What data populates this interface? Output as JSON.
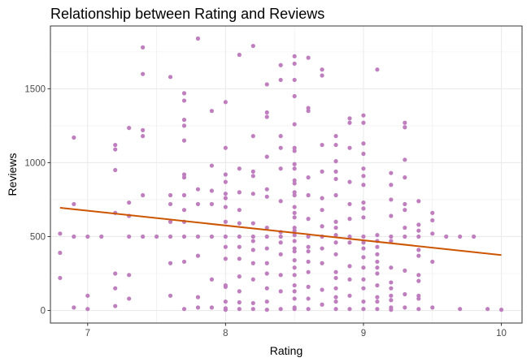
{
  "chart_data": {
    "type": "scatter",
    "title": "Relationship between Rating and Reviews",
    "xlabel": "Rating",
    "ylabel": "Reviews",
    "xlim": [
      6.73,
      10.15
    ],
    "ylim": [
      -85,
      1925
    ],
    "x_ticks": [
      7,
      8,
      9,
      10
    ],
    "y_ticks": [
      0,
      500,
      1000,
      1500
    ],
    "grid": true,
    "legend": "none",
    "colors": {
      "points": "#bf7fbf",
      "trend": "#cc5500",
      "grid": "#ebebeb",
      "panel_border": "#333333"
    },
    "trend_line": {
      "x": [
        6.8,
        10.0
      ],
      "y": [
        695,
        375
      ]
    },
    "points": [
      [
        6.8,
        520
      ],
      [
        6.8,
        390
      ],
      [
        6.8,
        220
      ],
      [
        6.9,
        1170
      ],
      [
        6.9,
        720
      ],
      [
        6.9,
        500
      ],
      [
        6.9,
        20
      ],
      [
        7.0,
        500
      ],
      [
        7.0,
        100
      ],
      [
        7.0,
        10
      ],
      [
        7.1,
        500
      ],
      [
        7.2,
        1120
      ],
      [
        7.2,
        1090
      ],
      [
        7.2,
        950
      ],
      [
        7.2,
        660
      ],
      [
        7.2,
        250
      ],
      [
        7.2,
        150
      ],
      [
        7.2,
        30
      ],
      [
        7.3,
        1235
      ],
      [
        7.3,
        730
      ],
      [
        7.3,
        640
      ],
      [
        7.3,
        500
      ],
      [
        7.3,
        240
      ],
      [
        7.3,
        80
      ],
      [
        7.4,
        1780
      ],
      [
        7.4,
        1600
      ],
      [
        7.4,
        1220
      ],
      [
        7.4,
        1180
      ],
      [
        7.4,
        780
      ],
      [
        7.4,
        500
      ],
      [
        7.5,
        500
      ],
      [
        7.6,
        1580
      ],
      [
        7.6,
        780
      ],
      [
        7.6,
        720
      ],
      [
        7.6,
        600
      ],
      [
        7.6,
        500
      ],
      [
        7.6,
        320
      ],
      [
        7.6,
        100
      ],
      [
        7.7,
        1470
      ],
      [
        7.7,
        1420
      ],
      [
        7.7,
        1290
      ],
      [
        7.7,
        1250
      ],
      [
        7.7,
        1150
      ],
      [
        7.7,
        920
      ],
      [
        7.7,
        900
      ],
      [
        7.7,
        780
      ],
      [
        7.7,
        680
      ],
      [
        7.7,
        600
      ],
      [
        7.7,
        500
      ],
      [
        7.7,
        330
      ],
      [
        7.7,
        10
      ],
      [
        7.8,
        1840
      ],
      [
        7.8,
        820
      ],
      [
        7.8,
        720
      ],
      [
        7.8,
        500
      ],
      [
        7.8,
        370
      ],
      [
        7.8,
        90
      ],
      [
        7.8,
        20
      ],
      [
        7.9,
        1350
      ],
      [
        7.9,
        980
      ],
      [
        7.9,
        810
      ],
      [
        7.9,
        720
      ],
      [
        7.9,
        500
      ],
      [
        7.9,
        210
      ],
      [
        7.9,
        20
      ],
      [
        8.0,
        1410
      ],
      [
        8.0,
        1100
      ],
      [
        8.0,
        920
      ],
      [
        8.0,
        870
      ],
      [
        8.0,
        790
      ],
      [
        8.0,
        760
      ],
      [
        8.0,
        700
      ],
      [
        8.0,
        600
      ],
      [
        8.0,
        500
      ],
      [
        8.0,
        430
      ],
      [
        8.0,
        350
      ],
      [
        8.0,
        170
      ],
      [
        8.0,
        160
      ],
      [
        8.0,
        60
      ],
      [
        8.0,
        15
      ],
      [
        8.0,
        5
      ],
      [
        8.1,
        1730
      ],
      [
        8.1,
        960
      ],
      [
        8.1,
        800
      ],
      [
        8.1,
        680
      ],
      [
        8.1,
        590
      ],
      [
        8.1,
        500
      ],
      [
        8.1,
        430
      ],
      [
        8.1,
        350
      ],
      [
        8.1,
        230
      ],
      [
        8.1,
        130
      ],
      [
        8.1,
        55
      ],
      [
        8.1,
        10
      ],
      [
        8.2,
        1790
      ],
      [
        8.2,
        1180
      ],
      [
        8.2,
        940
      ],
      [
        8.2,
        910
      ],
      [
        8.2,
        790
      ],
      [
        8.2,
        590
      ],
      [
        8.2,
        500
      ],
      [
        8.2,
        470
      ],
      [
        8.2,
        410
      ],
      [
        8.2,
        320
      ],
      [
        8.2,
        210
      ],
      [
        8.2,
        50
      ],
      [
        8.2,
        10
      ],
      [
        8.3,
        1530
      ],
      [
        8.3,
        1340
      ],
      [
        8.3,
        1310
      ],
      [
        8.3,
        1040
      ],
      [
        8.3,
        820
      ],
      [
        8.3,
        770
      ],
      [
        8.3,
        560
      ],
      [
        8.3,
        500
      ],
      [
        8.3,
        420
      ],
      [
        8.3,
        320
      ],
      [
        8.3,
        250
      ],
      [
        8.3,
        150
      ],
      [
        8.3,
        60
      ],
      [
        8.3,
        5
      ],
      [
        8.4,
        1660
      ],
      [
        8.4,
        1560
      ],
      [
        8.4,
        1180
      ],
      [
        8.4,
        1100
      ],
      [
        8.4,
        960
      ],
      [
        8.4,
        740
      ],
      [
        8.4,
        530
      ],
      [
        8.4,
        500
      ],
      [
        8.4,
        460
      ],
      [
        8.4,
        380
      ],
      [
        8.4,
        240
      ],
      [
        8.4,
        130
      ],
      [
        8.4,
        10
      ],
      [
        8.5,
        1720
      ],
      [
        8.5,
        1670
      ],
      [
        8.5,
        1560
      ],
      [
        8.5,
        1450
      ],
      [
        8.5,
        1260
      ],
      [
        8.5,
        1100
      ],
      [
        8.5,
        1080
      ],
      [
        8.5,
        990
      ],
      [
        8.5,
        960
      ],
      [
        8.5,
        880
      ],
      [
        8.5,
        860
      ],
      [
        8.5,
        800
      ],
      [
        8.5,
        780
      ],
      [
        8.5,
        700
      ],
      [
        8.5,
        660
      ],
      [
        8.5,
        630
      ],
      [
        8.5,
        560
      ],
      [
        8.5,
        540
      ],
      [
        8.5,
        510
      ],
      [
        8.5,
        470
      ],
      [
        8.5,
        420
      ],
      [
        8.5,
        400
      ],
      [
        8.5,
        340
      ],
      [
        8.5,
        290
      ],
      [
        8.5,
        240
      ],
      [
        8.5,
        170
      ],
      [
        8.5,
        130
      ],
      [
        8.5,
        80
      ],
      [
        8.5,
        20
      ],
      [
        8.5,
        10
      ],
      [
        8.6,
        1710
      ],
      [
        8.6,
        1370
      ],
      [
        8.6,
        1350
      ],
      [
        8.6,
        900
      ],
      [
        8.6,
        780
      ],
      [
        8.6,
        620
      ],
      [
        8.6,
        500
      ],
      [
        8.6,
        430
      ],
      [
        8.6,
        400
      ],
      [
        8.6,
        330
      ],
      [
        8.6,
        260
      ],
      [
        8.6,
        160
      ],
      [
        8.6,
        80
      ],
      [
        8.6,
        10
      ],
      [
        8.7,
        1630
      ],
      [
        8.7,
        1590
      ],
      [
        8.7,
        1120
      ],
      [
        8.7,
        940
      ],
      [
        8.7,
        760
      ],
      [
        8.7,
        680
      ],
      [
        8.7,
        570
      ],
      [
        8.7,
        500
      ],
      [
        8.7,
        420
      ],
      [
        8.7,
        320
      ],
      [
        8.7,
        140
      ],
      [
        8.7,
        40
      ],
      [
        8.8,
        1180
      ],
      [
        8.8,
        1120
      ],
      [
        8.8,
        1010
      ],
      [
        8.8,
        940
      ],
      [
        8.8,
        890
      ],
      [
        8.8,
        780
      ],
      [
        8.8,
        600
      ],
      [
        8.8,
        560
      ],
      [
        8.8,
        510
      ],
      [
        8.8,
        460
      ],
      [
        8.8,
        380
      ],
      [
        8.8,
        260
      ],
      [
        8.8,
        220
      ],
      [
        8.8,
        150
      ],
      [
        8.8,
        90
      ],
      [
        8.8,
        60
      ],
      [
        8.8,
        10
      ],
      [
        8.9,
        1300
      ],
      [
        8.9,
        1270
      ],
      [
        8.9,
        1100
      ],
      [
        8.9,
        870
      ],
      [
        8.9,
        720
      ],
      [
        8.9,
        620
      ],
      [
        8.9,
        500
      ],
      [
        8.9,
        460
      ],
      [
        8.9,
        300
      ],
      [
        8.9,
        210
      ],
      [
        8.9,
        100
      ],
      [
        8.9,
        10
      ],
      [
        9.0,
        1320
      ],
      [
        9.0,
        1270
      ],
      [
        9.0,
        1130
      ],
      [
        9.0,
        1060
      ],
      [
        9.0,
        960
      ],
      [
        9.0,
        910
      ],
      [
        9.0,
        850
      ],
      [
        9.0,
        730
      ],
      [
        9.0,
        690
      ],
      [
        9.0,
        630
      ],
      [
        9.0,
        500
      ],
      [
        9.0,
        460
      ],
      [
        9.0,
        420
      ],
      [
        9.0,
        360
      ],
      [
        9.0,
        290
      ],
      [
        9.0,
        210
      ],
      [
        9.0,
        150
      ],
      [
        9.0,
        60
      ],
      [
        9.0,
        10
      ],
      [
        9.1,
        1630
      ],
      [
        9.1,
        510
      ],
      [
        9.1,
        470
      ],
      [
        9.1,
        430
      ],
      [
        9.1,
        380
      ],
      [
        9.1,
        330
      ],
      [
        9.1,
        290
      ],
      [
        9.1,
        250
      ],
      [
        9.1,
        170
      ],
      [
        9.1,
        90
      ],
      [
        9.1,
        60
      ],
      [
        9.1,
        10
      ],
      [
        9.2,
        930
      ],
      [
        9.2,
        850
      ],
      [
        9.2,
        750
      ],
      [
        9.2,
        640
      ],
      [
        9.2,
        500
      ],
      [
        9.2,
        470
      ],
      [
        9.2,
        290
      ],
      [
        9.2,
        190
      ],
      [
        9.2,
        150
      ],
      [
        9.2,
        100
      ],
      [
        9.2,
        70
      ],
      [
        9.2,
        20
      ],
      [
        9.2,
        5
      ],
      [
        9.3,
        1270
      ],
      [
        9.3,
        1240
      ],
      [
        9.3,
        1020
      ],
      [
        9.3,
        900
      ],
      [
        9.3,
        720
      ],
      [
        9.3,
        680
      ],
      [
        9.3,
        560
      ],
      [
        9.3,
        500
      ],
      [
        9.3,
        270
      ],
      [
        9.3,
        110
      ],
      [
        9.3,
        20
      ],
      [
        9.4,
        740
      ],
      [
        9.4,
        580
      ],
      [
        9.4,
        540
      ],
      [
        9.4,
        500
      ],
      [
        9.4,
        410
      ],
      [
        9.4,
        370
      ],
      [
        9.4,
        240
      ],
      [
        9.4,
        200
      ],
      [
        9.4,
        100
      ],
      [
        9.4,
        80
      ],
      [
        9.4,
        10
      ],
      [
        9.5,
        660
      ],
      [
        9.5,
        610
      ],
      [
        9.5,
        520
      ],
      [
        9.5,
        330
      ],
      [
        9.5,
        20
      ],
      [
        9.6,
        500
      ],
      [
        9.7,
        500
      ],
      [
        9.7,
        10
      ],
      [
        9.8,
        500
      ],
      [
        9.9,
        10
      ],
      [
        10.0,
        5
      ]
    ]
  }
}
